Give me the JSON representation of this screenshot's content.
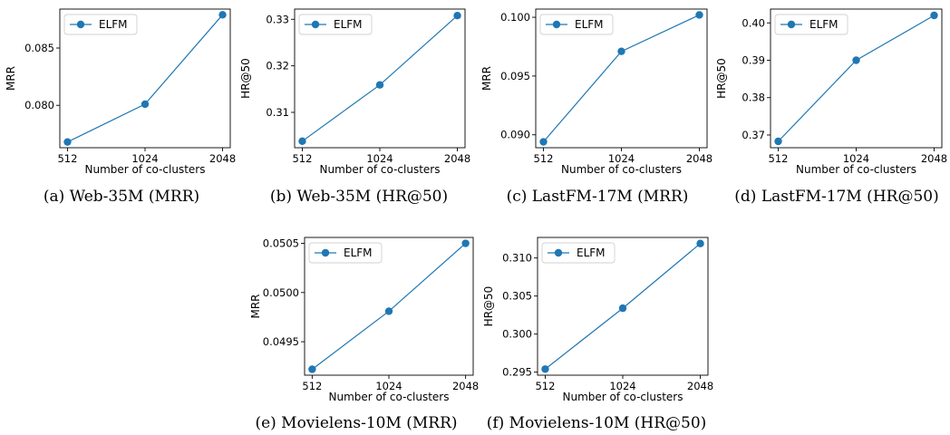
{
  "chart_data": [
    {
      "type": "line",
      "caption": "(a) Web-35M (MRR)",
      "xlabel": "Number of co-clusters",
      "ylabel": "MRR",
      "categories": [
        "512",
        "1024",
        "2048"
      ],
      "series": [
        {
          "name": "ELFM",
          "values": [
            0.0768,
            0.0801,
            0.0879
          ],
          "color": "#1f77b4"
        }
      ],
      "ylim": [
        0.0763,
        0.0884
      ],
      "yticks": [
        0.08,
        0.085
      ],
      "ytick_labels": [
        "0.080",
        "0.085"
      ],
      "legend": "top-left",
      "grid": false
    },
    {
      "type": "line",
      "caption": "(b) Web-35M (HR@50)",
      "xlabel": "Number of co-clusters",
      "ylabel": "HR@50",
      "categories": [
        "512",
        "1024",
        "2048"
      ],
      "series": [
        {
          "name": "ELFM",
          "values": [
            0.3038,
            0.3159,
            0.3308
          ],
          "color": "#1f77b4"
        }
      ],
      "ylim": [
        0.3024,
        0.3322
      ],
      "yticks": [
        0.31,
        0.32,
        0.33
      ],
      "ytick_labels": [
        "0.31",
        "0.32",
        "0.33"
      ],
      "legend": "top-left",
      "grid": false
    },
    {
      "type": "line",
      "caption": "(c) LastFM-17M (MRR)",
      "xlabel": "Number of co-clusters",
      "ylabel": "MRR",
      "categories": [
        "512",
        "1024",
        "2048"
      ],
      "series": [
        {
          "name": "ELFM",
          "values": [
            0.0894,
            0.0971,
            0.1002
          ],
          "color": "#1f77b4"
        }
      ],
      "ylim": [
        0.0889,
        0.1007
      ],
      "yticks": [
        0.09,
        0.095,
        0.1
      ],
      "ytick_labels": [
        "0.090",
        "0.095",
        "0.100"
      ],
      "legend": "top-left",
      "grid": false
    },
    {
      "type": "line",
      "caption": "(d) LastFM-17M (HR@50)",
      "xlabel": "Number of co-clusters",
      "ylabel": "HR@50",
      "categories": [
        "512",
        "1024",
        "2048"
      ],
      "series": [
        {
          "name": "ELFM",
          "values": [
            0.3683,
            0.39,
            0.402
          ],
          "color": "#1f77b4"
        }
      ],
      "ylim": [
        0.3666,
        0.4037
      ],
      "yticks": [
        0.37,
        0.38,
        0.39,
        0.4
      ],
      "ytick_labels": [
        "0.37",
        "0.38",
        "0.39",
        "0.40"
      ],
      "legend": "top-left",
      "grid": false
    },
    {
      "type": "line",
      "caption": "(e) Movielens-10M (MRR)",
      "xlabel": "Number of co-clusters",
      "ylabel": "MRR",
      "categories": [
        "512",
        "1024",
        "2048"
      ],
      "series": [
        {
          "name": "ELFM",
          "values": [
            0.04922,
            0.04981,
            0.0505
          ],
          "color": "#1f77b4"
        }
      ],
      "ylim": [
        0.04916,
        0.05056
      ],
      "yticks": [
        0.0495,
        0.05,
        0.0505
      ],
      "ytick_labels": [
        "0.0495",
        "0.0500",
        "0.0505"
      ],
      "legend": "top-left",
      "grid": false
    },
    {
      "type": "line",
      "caption": "(f) Movielens-10M (HR@50)",
      "xlabel": "Number of co-clusters",
      "ylabel": "HR@50",
      "categories": [
        "512",
        "1024",
        "2048"
      ],
      "series": [
        {
          "name": "ELFM",
          "values": [
            0.2954,
            0.3034,
            0.3119
          ],
          "color": "#1f77b4"
        }
      ],
      "ylim": [
        0.2946,
        0.3127
      ],
      "yticks": [
        0.295,
        0.3,
        0.305,
        0.31
      ],
      "ytick_labels": [
        "0.295",
        "0.300",
        "0.305",
        "0.310"
      ],
      "legend": "top-left",
      "grid": false
    }
  ]
}
